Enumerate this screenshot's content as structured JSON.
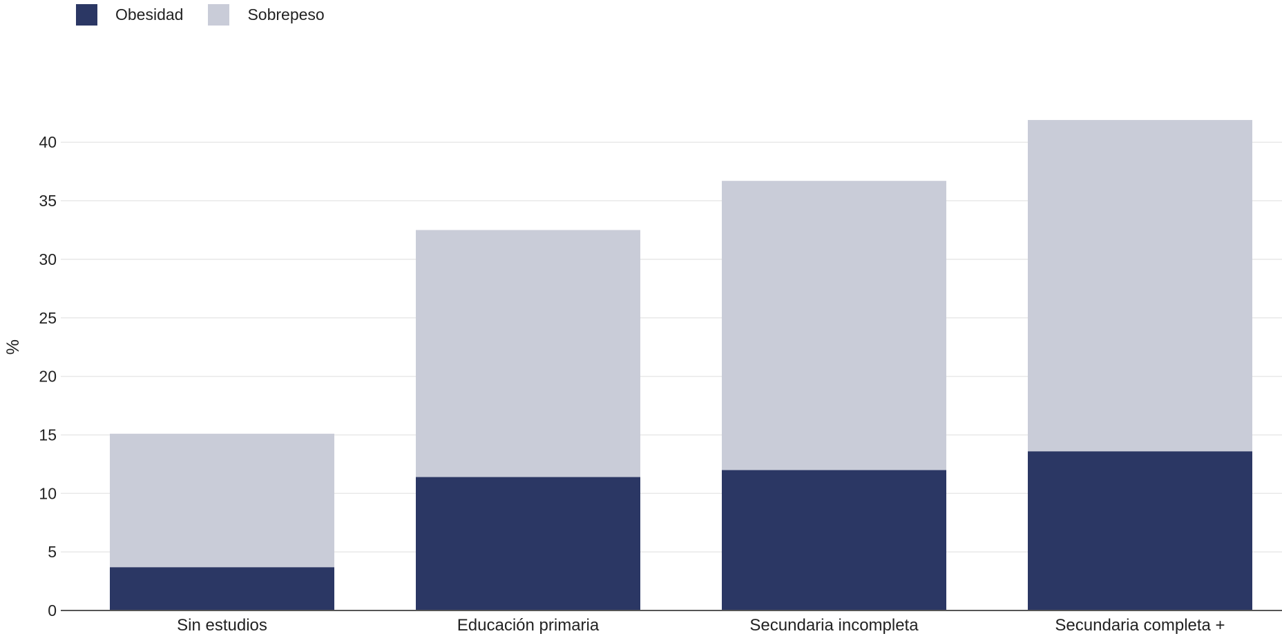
{
  "colors": {
    "obesidad": "#2b3764",
    "sobrepeso": "#c9ccd8",
    "grid": "#e8e8e8",
    "axis": "#555555",
    "text": "#222222"
  },
  "legend": {
    "items": [
      {
        "label": "Obesidad",
        "color": "#2b3764"
      },
      {
        "label": "Sobrepeso",
        "color": "#c9ccd8"
      }
    ]
  },
  "chart_data": {
    "type": "bar",
    "stacked": true,
    "title": "",
    "xlabel": "",
    "ylabel": "%",
    "ylim": [
      0,
      45
    ],
    "yticks": [
      0,
      5,
      10,
      15,
      20,
      25,
      30,
      35,
      40
    ],
    "grid": true,
    "legend_position": "top-left",
    "categories": [
      "Sin estudios",
      "Educación primaria",
      "Secundaria incompleta",
      "Secundaria completa +"
    ],
    "series": [
      {
        "name": "Obesidad",
        "values": [
          3.7,
          11.4,
          12.0,
          13.6
        ]
      },
      {
        "name": "Sobrepeso",
        "values": [
          11.4,
          21.1,
          24.7,
          28.3
        ]
      }
    ]
  }
}
